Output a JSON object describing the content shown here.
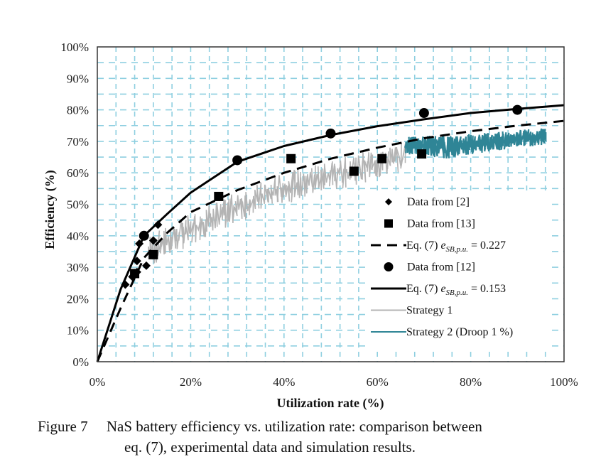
{
  "chart_data": {
    "type": "scatter",
    "title": "",
    "xlabel": "Utilization rate (%)",
    "ylabel": "Efficiency (%)",
    "xlim": [
      0,
      100
    ],
    "ylim": [
      0,
      100
    ],
    "grid": true,
    "grid_color": "#8ecfe0",
    "x_ticks": [
      "0%",
      "20%",
      "40%",
      "60%",
      "80%",
      "100%"
    ],
    "x_tick_values": [
      0,
      20,
      40,
      60,
      80,
      100
    ],
    "y_ticks": [
      "0%",
      "10%",
      "20%",
      "30%",
      "40%",
      "50%",
      "60%",
      "70%",
      "80%",
      "90%",
      "100%"
    ],
    "y_tick_values": [
      0,
      10,
      20,
      30,
      40,
      50,
      60,
      70,
      80,
      90,
      100
    ],
    "legend_position": "lower-right",
    "series": [
      {
        "name": "Data from [2]",
        "kind": "marker",
        "marker": "diamond",
        "color": "#000000",
        "points": [
          [
            6,
            24.5
          ],
          [
            7.5,
            27
          ],
          [
            8.5,
            28.5
          ],
          [
            8.5,
            32
          ],
          [
            9,
            37.5
          ],
          [
            10.5,
            30.5
          ],
          [
            12,
            38.5
          ],
          [
            13,
            43.5
          ]
        ]
      },
      {
        "name": "Data from [13]",
        "kind": "marker",
        "marker": "square",
        "color": "#000000",
        "points": [
          [
            8,
            28
          ],
          [
            12,
            34
          ],
          [
            26,
            52.5
          ],
          [
            41.5,
            64.5
          ],
          [
            55,
            60.5
          ],
          [
            61,
            64.5
          ],
          [
            69.5,
            66
          ]
        ]
      },
      {
        "name": "Eq. (7) e_SB,p.u. = 0.227",
        "legend_prefix": "Eq. (7) ",
        "legend_var": "e",
        "legend_sub": "SB,p.u.",
        "legend_suffix": " = 0.227",
        "kind": "line",
        "dash": true,
        "color": "#000000",
        "points": [
          [
            0,
            0
          ],
          [
            5,
            17
          ],
          [
            10,
            33
          ],
          [
            15,
            41
          ],
          [
            20,
            47.5
          ],
          [
            30,
            54.5
          ],
          [
            40,
            60
          ],
          [
            50,
            64.5
          ],
          [
            60,
            68
          ],
          [
            70,
            71
          ],
          [
            80,
            73.2
          ],
          [
            90,
            75
          ],
          [
            100,
            76.5
          ]
        ]
      },
      {
        "name": "Data from [12]",
        "kind": "marker",
        "marker": "circle",
        "color": "#000000",
        "points": [
          [
            10,
            40
          ],
          [
            30,
            64
          ],
          [
            50,
            72.5
          ],
          [
            70,
            79
          ],
          [
            90,
            80
          ]
        ]
      },
      {
        "name": "Eq. (7) e_SB,p.u. = 0.153",
        "legend_prefix": "Eq. (7) ",
        "legend_var": "e",
        "legend_sub": "SB,p.u.",
        "legend_suffix": " = 0.153",
        "kind": "line",
        "dash": false,
        "color": "#000000",
        "points": [
          [
            0,
            0
          ],
          [
            5,
            23
          ],
          [
            10,
            40
          ],
          [
            15,
            47
          ],
          [
            20,
            53.7
          ],
          [
            30,
            63.5
          ],
          [
            40,
            68.5
          ],
          [
            50,
            72
          ],
          [
            60,
            74.8
          ],
          [
            70,
            77
          ],
          [
            80,
            79
          ],
          [
            90,
            80.3
          ],
          [
            100,
            81.5
          ]
        ]
      },
      {
        "name": "Strategy 1",
        "kind": "noisy-band",
        "color": "#b4b4b4",
        "x_range": [
          11,
          66
        ],
        "lower": [
          [
            11,
            30
          ],
          [
            20,
            37
          ],
          [
            30,
            44
          ],
          [
            40,
            50
          ],
          [
            50,
            54
          ],
          [
            60,
            58
          ],
          [
            66,
            61
          ]
        ],
        "upper": [
          [
            11,
            40
          ],
          [
            20,
            47
          ],
          [
            30,
            54
          ],
          [
            40,
            60
          ],
          [
            50,
            64.5
          ],
          [
            60,
            68
          ],
          [
            66,
            70
          ]
        ]
      },
      {
        "name": "Strategy 2 (Droop 1 %)",
        "kind": "noisy-band",
        "color": "#2f8596",
        "x_range": [
          66,
          96
        ],
        "lower": [
          [
            66,
            66
          ],
          [
            75,
            64.5
          ],
          [
            85,
            67
          ],
          [
            96,
            69
          ]
        ],
        "upper": [
          [
            66,
            71.5
          ],
          [
            75,
            72
          ],
          [
            85,
            73
          ],
          [
            96,
            74.5
          ]
        ]
      }
    ]
  },
  "caption": {
    "line1": "Figure 7     NaS battery efficiency vs. utilization rate: comparison between",
    "line2": "eq. (7), experimental data and simulation results."
  }
}
